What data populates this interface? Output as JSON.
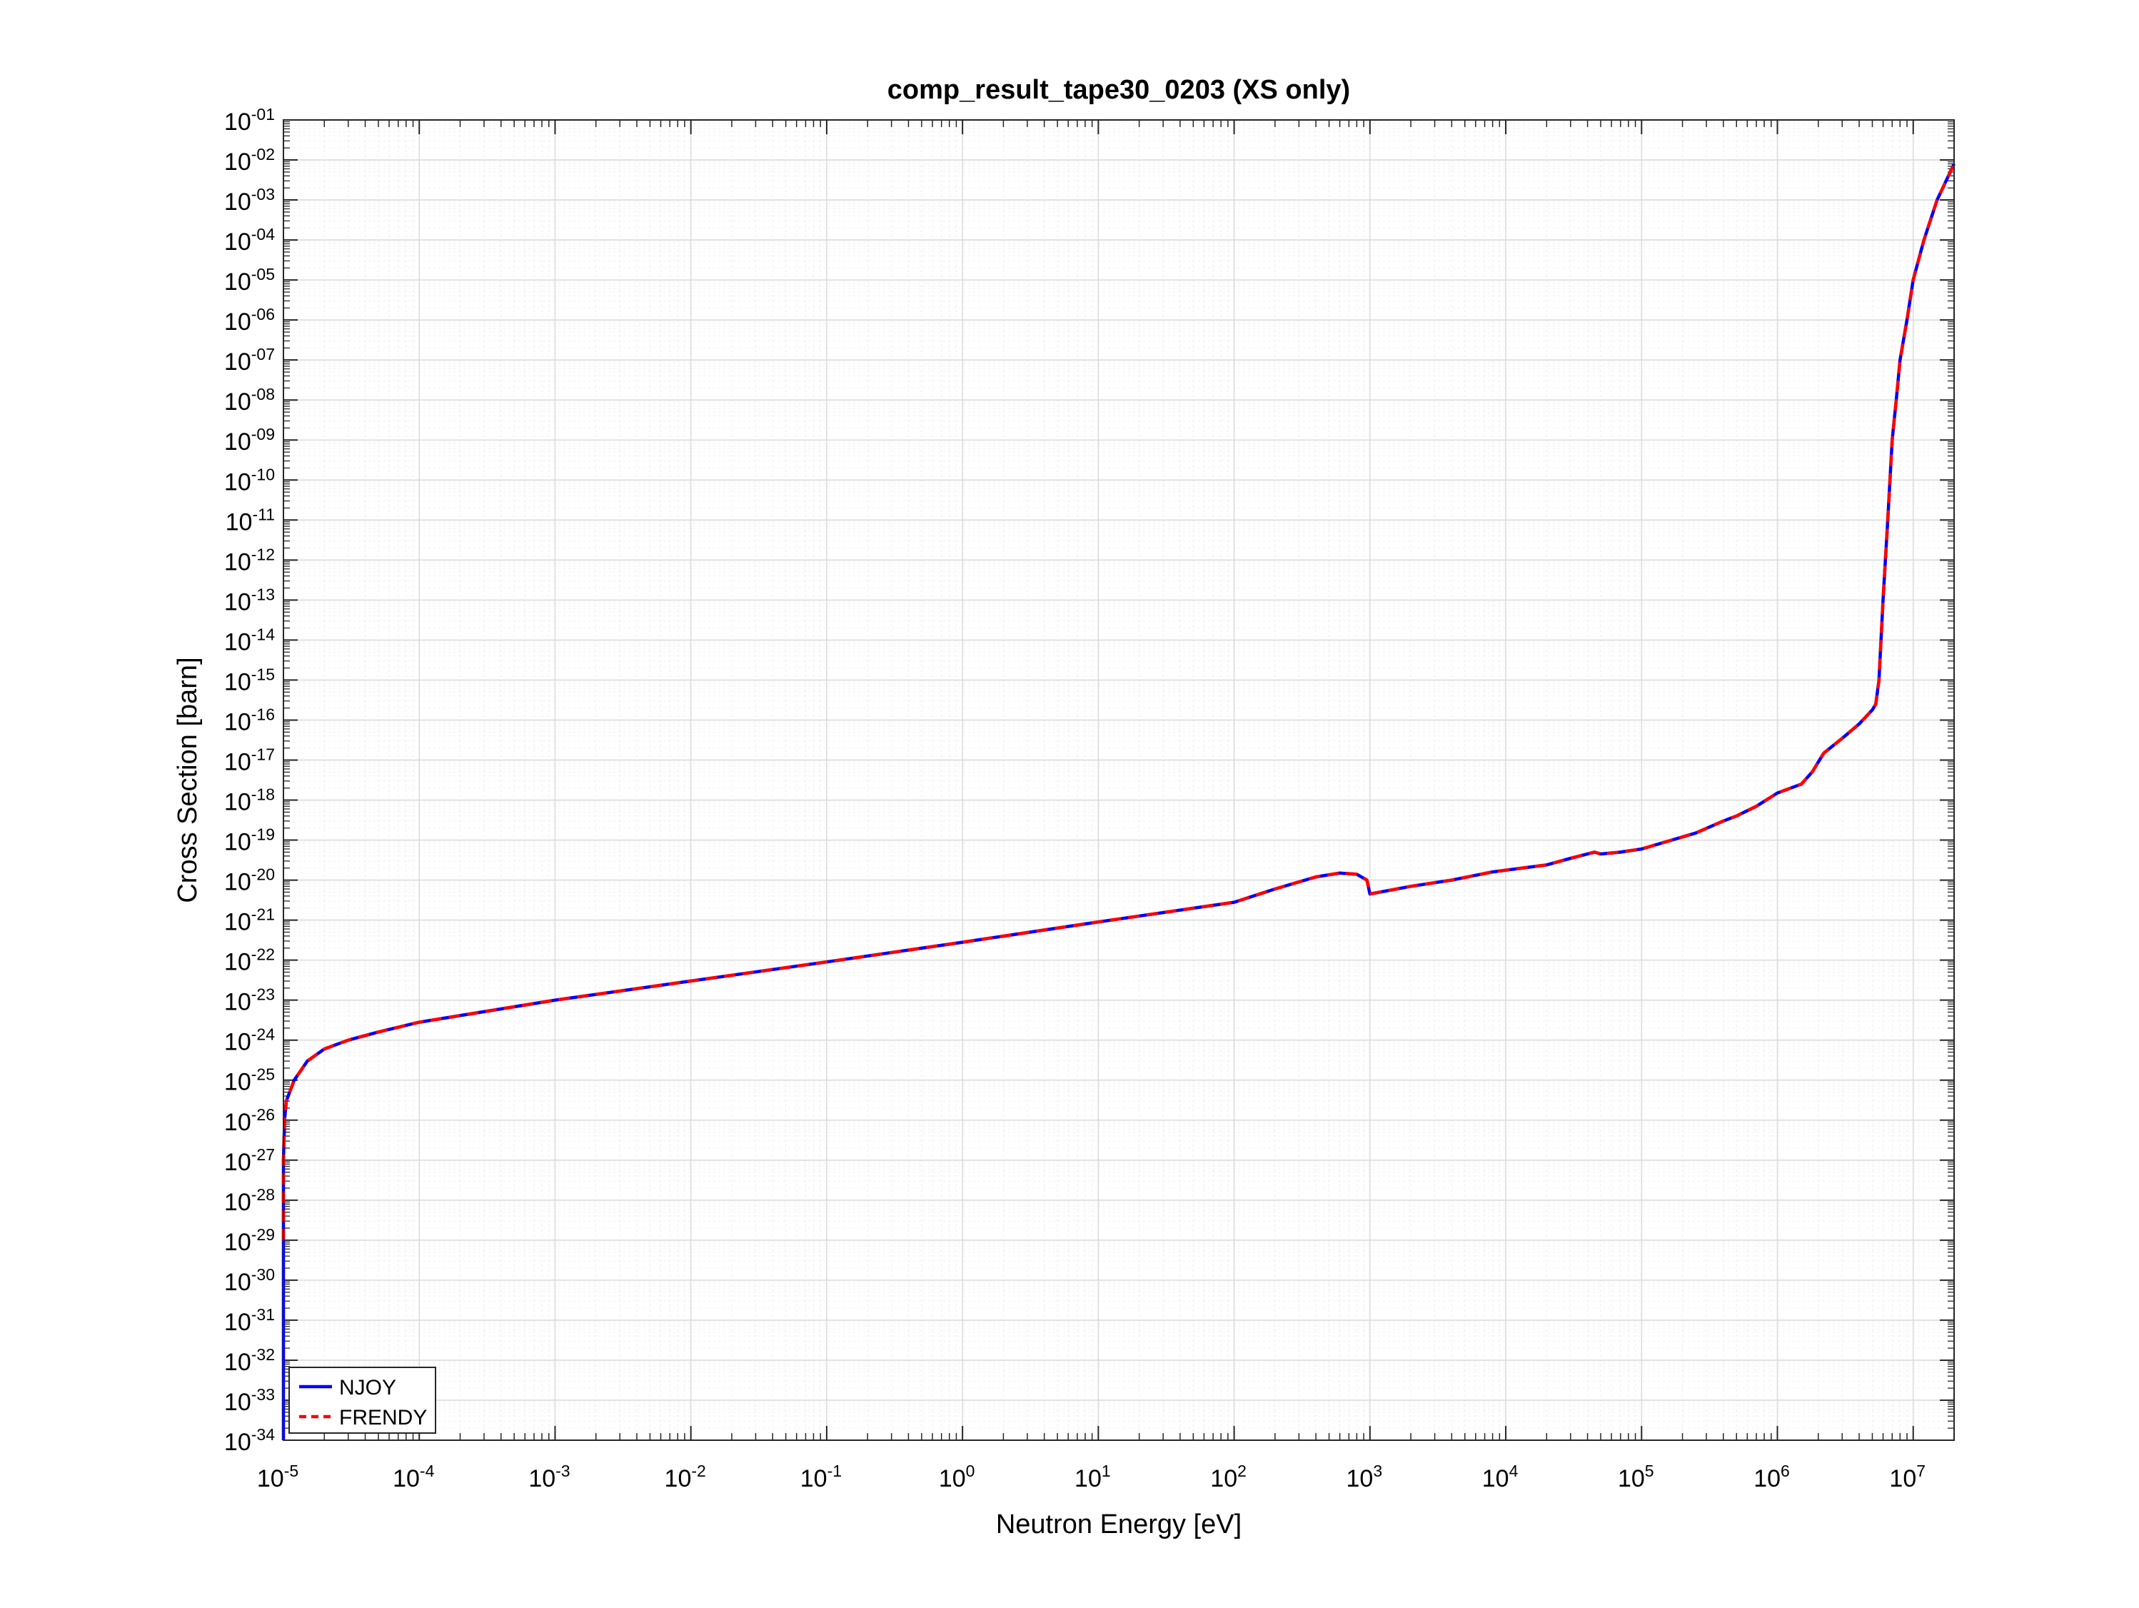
{
  "chart_data": {
    "type": "line",
    "title": "comp_result_tape30_0203 (XS only)",
    "xlabel": "Neutron Energy [eV]",
    "ylabel": "Cross Section [barn]",
    "xscale": "log",
    "yscale": "log",
    "xlim": [
      1e-05,
      20000000.0
    ],
    "ylim": [
      1e-34,
      0.1
    ],
    "grid": true,
    "legend_position": "bottom-left",
    "x_tick_labels": [
      {
        "base": "10",
        "exp": "-5",
        "value": 1e-05
      },
      {
        "base": "10",
        "exp": "-4",
        "value": 0.0001
      },
      {
        "base": "10",
        "exp": "-3",
        "value": 0.001
      },
      {
        "base": "10",
        "exp": "-2",
        "value": 0.01
      },
      {
        "base": "10",
        "exp": "-1",
        "value": 0.1
      },
      {
        "base": "10",
        "exp": "0",
        "value": 1
      },
      {
        "base": "10",
        "exp": "1",
        "value": 10
      },
      {
        "base": "10",
        "exp": "2",
        "value": 100
      },
      {
        "base": "10",
        "exp": "3",
        "value": 1000.0
      },
      {
        "base": "10",
        "exp": "4",
        "value": 10000.0
      },
      {
        "base": "10",
        "exp": "5",
        "value": 100000.0
      },
      {
        "base": "10",
        "exp": "6",
        "value": 1000000.0
      },
      {
        "base": "10",
        "exp": "7",
        "value": 10000000.0
      }
    ],
    "y_tick_labels": [
      {
        "base": "10",
        "exp": "-01",
        "value": 0.1
      },
      {
        "base": "10",
        "exp": "-02",
        "value": 0.01
      },
      {
        "base": "10",
        "exp": "-03",
        "value": 0.001
      },
      {
        "base": "10",
        "exp": "-04",
        "value": 0.0001
      },
      {
        "base": "10",
        "exp": "-05",
        "value": 1e-05
      },
      {
        "base": "10",
        "exp": "-06",
        "value": 1e-06
      },
      {
        "base": "10",
        "exp": "-07",
        "value": 1e-07
      },
      {
        "base": "10",
        "exp": "-08",
        "value": 1e-08
      },
      {
        "base": "10",
        "exp": "-09",
        "value": 1e-09
      },
      {
        "base": "10",
        "exp": "-10",
        "value": 1e-10
      },
      {
        "base": "10",
        "exp": "-11",
        "value": 1e-11
      },
      {
        "base": "10",
        "exp": "-12",
        "value": 1e-12
      },
      {
        "base": "10",
        "exp": "-13",
        "value": 1e-13
      },
      {
        "base": "10",
        "exp": "-14",
        "value": 1e-14
      },
      {
        "base": "10",
        "exp": "-15",
        "value": 1e-15
      },
      {
        "base": "10",
        "exp": "-16",
        "value": 1e-16
      },
      {
        "base": "10",
        "exp": "-17",
        "value": 1e-17
      },
      {
        "base": "10",
        "exp": "-18",
        "value": 1e-18
      },
      {
        "base": "10",
        "exp": "-19",
        "value": 1e-19
      },
      {
        "base": "10",
        "exp": "-20",
        "value": 1e-20
      },
      {
        "base": "10",
        "exp": "-21",
        "value": 1e-21
      },
      {
        "base": "10",
        "exp": "-22",
        "value": 1e-22
      },
      {
        "base": "10",
        "exp": "-23",
        "value": 1e-23
      },
      {
        "base": "10",
        "exp": "-24",
        "value": 1e-24
      },
      {
        "base": "10",
        "exp": "-25",
        "value": 1e-25
      },
      {
        "base": "10",
        "exp": "-26",
        "value": 1e-26
      },
      {
        "base": "10",
        "exp": "-27",
        "value": 1e-27
      },
      {
        "base": "10",
        "exp": "-28",
        "value": 1e-28
      },
      {
        "base": "10",
        "exp": "-29",
        "value": 1e-29
      },
      {
        "base": "10",
        "exp": "-30",
        "value": 1e-30
      },
      {
        "base": "10",
        "exp": "-31",
        "value": 1e-31
      },
      {
        "base": "10",
        "exp": "-32",
        "value": 1e-32
      },
      {
        "base": "10",
        "exp": "-33",
        "value": 1e-33
      },
      {
        "base": "10",
        "exp": "-34",
        "value": 1e-34
      }
    ],
    "series": [
      {
        "name": "NJOY",
        "color": "#0000ff",
        "line_style": "solid",
        "x": [
          1e-05,
          1e-05,
          1e-05,
          1.02e-05,
          1.05e-05,
          1.2e-05,
          1.5e-05,
          2e-05,
          3e-05,
          5e-05,
          0.0001,
          0.001,
          0.01,
          0.1,
          1,
          10,
          100,
          200,
          400,
          600,
          800,
          950,
          1000,
          2000,
          4000,
          8000,
          20000,
          30000,
          45000,
          50000,
          70000,
          100000,
          150000,
          250000,
          400000,
          500000,
          700000,
          1000000,
          1500000,
          1800000,
          2200000,
          3000000,
          4000000,
          5000000,
          5300000,
          5600000,
          6000000,
          6500000,
          7000000,
          7500000,
          8000000,
          9000000,
          10000000,
          12000000,
          15000000,
          20000000
        ],
        "y": [
          1e-34,
          1e-30,
          1e-27,
          1e-26,
          3e-26,
          1e-25,
          3e-25,
          6e-25,
          1e-24,
          1.6e-24,
          2.8e-24,
          1e-23,
          3e-23,
          9e-23,
          2.8e-22,
          9e-22,
          2.8e-21,
          6e-21,
          1.2e-20,
          1.5e-20,
          1.4e-20,
          1e-20,
          4.5e-21,
          7e-21,
          1e-20,
          1.6e-20,
          2.4e-20,
          3.5e-20,
          5e-20,
          4.5e-20,
          5e-20,
          6e-20,
          9e-20,
          1.5e-19,
          3e-19,
          4e-19,
          7e-19,
          1.5e-18,
          2.5e-18,
          5e-18,
          1.5e-17,
          3.5e-17,
          8e-17,
          1.8e-16,
          2.5e-16,
          1e-15,
          1e-13,
          1e-11,
          1e-09,
          1e-08,
          1e-07,
          1e-06,
          1e-05,
          0.0001,
          0.001,
          0.008
        ]
      },
      {
        "name": "FRENDY",
        "color": "#ff0000",
        "line_style": "dashed",
        "x": [
          1e-05,
          1e-05,
          1e-05,
          1.02e-05,
          1.05e-05,
          1.2e-05,
          1.5e-05,
          2e-05,
          3e-05,
          5e-05,
          0.0001,
          0.001,
          0.01,
          0.1,
          1,
          10,
          100,
          200,
          400,
          600,
          800,
          950,
          1000,
          2000,
          4000,
          8000,
          20000,
          30000,
          45000,
          50000,
          70000,
          100000,
          150000,
          250000,
          400000,
          500000,
          700000,
          1000000,
          1500000,
          1800000,
          2200000,
          3000000,
          4000000,
          5000000,
          5300000,
          5600000,
          6000000,
          6500000,
          7000000,
          7500000,
          8000000,
          9000000,
          10000000,
          12000000,
          15000000,
          20000000
        ],
        "y": [
          1e-29,
          1e-28,
          1e-27,
          1e-26,
          3e-26,
          1e-25,
          3e-25,
          6e-25,
          1e-24,
          1.6e-24,
          2.8e-24,
          1e-23,
          3e-23,
          9e-23,
          2.8e-22,
          9e-22,
          2.8e-21,
          6e-21,
          1.2e-20,
          1.5e-20,
          1.4e-20,
          1e-20,
          4.5e-21,
          7e-21,
          1e-20,
          1.6e-20,
          2.4e-20,
          3.5e-20,
          5e-20,
          4.5e-20,
          5e-20,
          6e-20,
          9e-20,
          1.5e-19,
          3e-19,
          4e-19,
          7e-19,
          1.5e-18,
          2.5e-18,
          5e-18,
          1.5e-17,
          3.5e-17,
          8e-17,
          1.8e-16,
          2.5e-16,
          1e-15,
          1e-13,
          1e-11,
          1e-09,
          1e-08,
          1e-07,
          1e-06,
          1e-05,
          0.0001,
          0.001,
          0.008
        ]
      }
    ]
  }
}
